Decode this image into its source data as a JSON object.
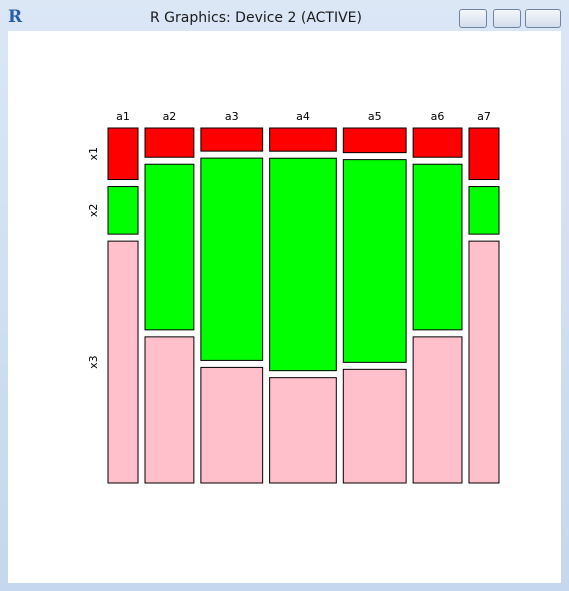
{
  "window": {
    "title": "R Graphics: Device 2 (ACTIVE)"
  },
  "chart_data": {
    "type": "mosaic",
    "categories": [
      "a1",
      "a2",
      "a3",
      "a4",
      "a5",
      "a6",
      "a7"
    ],
    "series": [
      {
        "name": "x1",
        "color": "#ff0000",
        "values": [
          13,
          12,
          12,
          13,
          13,
          12,
          13
        ]
      },
      {
        "name": "x2",
        "color": "#00ff00",
        "values": [
          12,
          68,
          105,
          119,
          107,
          68,
          12
        ]
      },
      {
        "name": "x3",
        "color": "#ffc0cb",
        "values": [
          61,
          60,
          60,
          59,
          60,
          60,
          61
        ]
      }
    ]
  }
}
